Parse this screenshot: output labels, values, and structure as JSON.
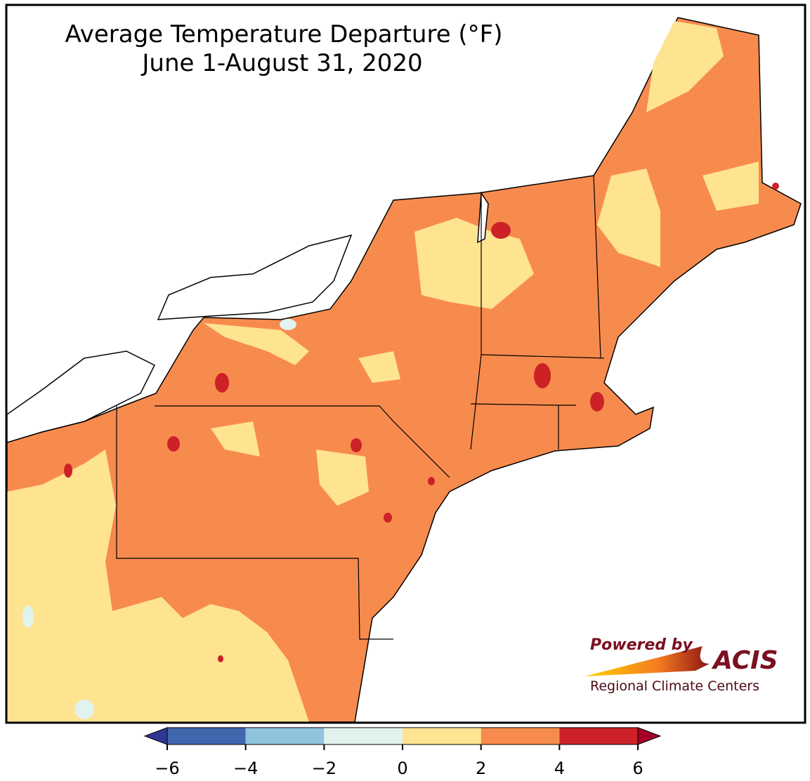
{
  "title": "Average Temperature Departure (°F)",
  "subtitle": "June 1-August 31, 2020",
  "colorbar": {
    "ticks": [
      {
        "value": -6,
        "label": "−6"
      },
      {
        "value": -4,
        "label": "−4"
      },
      {
        "value": -2,
        "label": "−2"
      },
      0,
      2,
      4,
      6
    ],
    "colors": [
      "#4066ad",
      "#8fc3de",
      "#e1f3ee",
      "#fee391",
      "#f78b4e",
      "#cc2227"
    ],
    "under_color": "#313695",
    "over_color": "#a50026"
  },
  "logo": {
    "tagline": "Powered by",
    "name": "ACIS",
    "org": "Regional Climate Centers"
  }
}
